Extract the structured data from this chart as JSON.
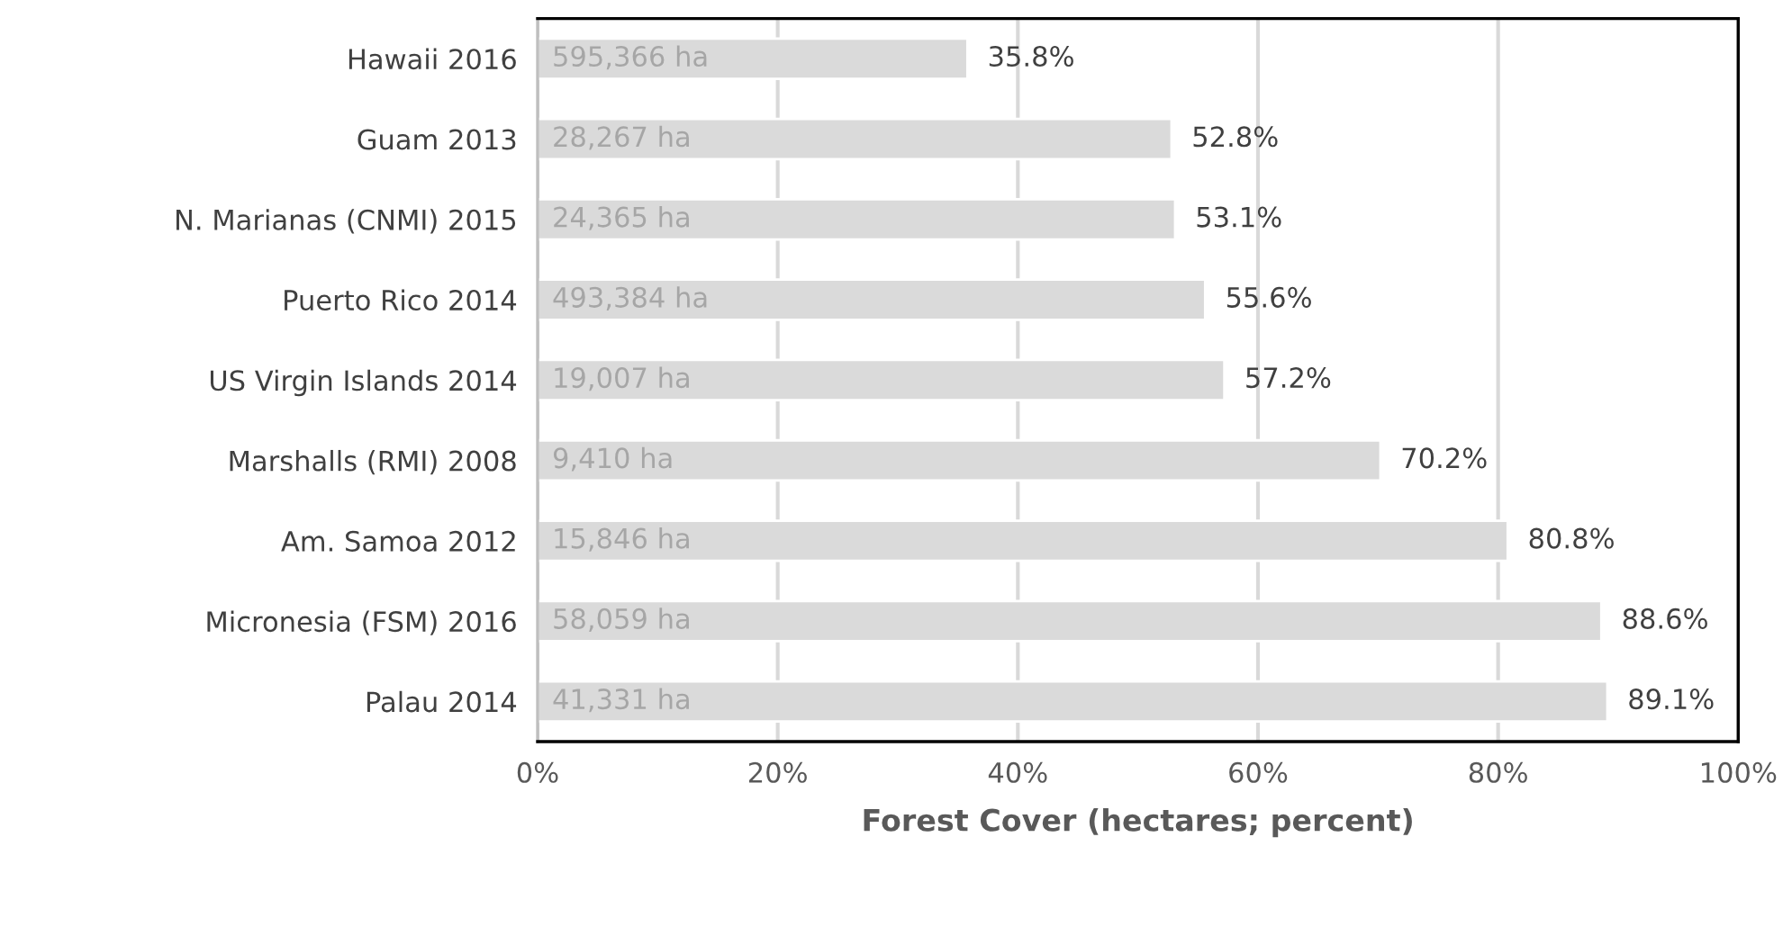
{
  "chart_data": {
    "type": "bar",
    "orientation": "horizontal",
    "xlabel": "Forest Cover (hectares; percent)",
    "categories": [
      "Hawaii 2016",
      "Guam 2013",
      "N. Marianas (CNMI) 2015",
      "Puerto Rico 2014",
      "US Virgin Islands 2014",
      "Marshalls (RMI) 2008",
      "Am. Samoa 2012",
      "Micronesia (FSM) 2016",
      "Palau 2014"
    ],
    "values": [
      35.8,
      52.8,
      53.1,
      55.6,
      57.2,
      70.2,
      80.8,
      88.6,
      89.1
    ],
    "value_labels": [
      "35.8%",
      "52.8%",
      "53.1%",
      "55.6%",
      "57.2%",
      "70.2%",
      "80.8%",
      "88.6%",
      "89.1%"
    ],
    "color": "#dadada",
    "annotations": [
      "595,366 ha",
      "28,267 ha",
      "24,365 ha",
      "493,384 ha",
      "19,007 ha",
      "9,410 ha",
      "15,846 ha",
      "58,059 ha",
      "41,331 ha"
    ],
    "xlim": [
      0,
      100
    ],
    "xticks": [
      {
        "value": 0,
        "label": "0%"
      },
      {
        "value": 20,
        "label": "20%"
      },
      {
        "value": 40,
        "label": "40%"
      },
      {
        "value": 60,
        "label": "60%"
      },
      {
        "value": 80,
        "label": "80%"
      },
      {
        "value": 100,
        "label": "100%"
      }
    ],
    "grid": "x"
  }
}
